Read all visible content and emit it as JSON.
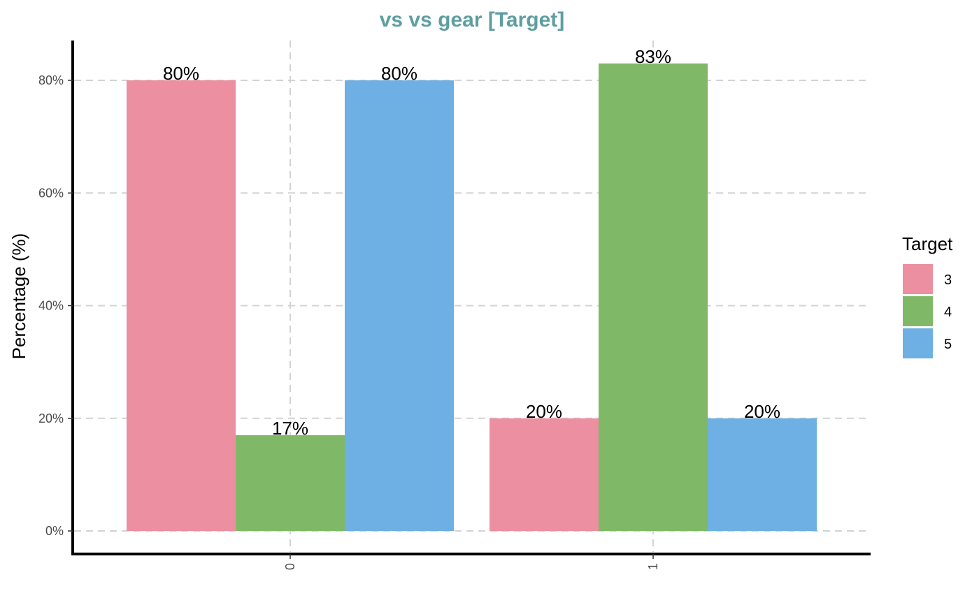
{
  "chart_data": {
    "type": "bar",
    "title": "vs vs gear [Target]",
    "title_color": "#5f9ea0",
    "xlabel": "",
    "ylabel": "Percentage (%)",
    "categories": [
      "0",
      "1"
    ],
    "series": [
      {
        "name": "3",
        "color": "#ec8fa1",
        "values": [
          80,
          20
        ],
        "labels": [
          "80%",
          "20%"
        ]
      },
      {
        "name": "4",
        "color": "#7fb967",
        "values": [
          17,
          83
        ],
        "labels": [
          "17%",
          "83%"
        ]
      },
      {
        "name": "5",
        "color": "#6eafe4",
        "values": [
          80,
          20
        ],
        "labels": [
          "80%",
          "20%"
        ]
      }
    ],
    "ylim": [
      0,
      87
    ],
    "yticks": [
      0,
      20,
      40,
      60,
      80
    ],
    "ytick_labels": [
      "0%",
      "20%",
      "40%",
      "60%",
      "80%"
    ],
    "grid": true,
    "legend": {
      "title": "Target",
      "position": "right"
    }
  }
}
